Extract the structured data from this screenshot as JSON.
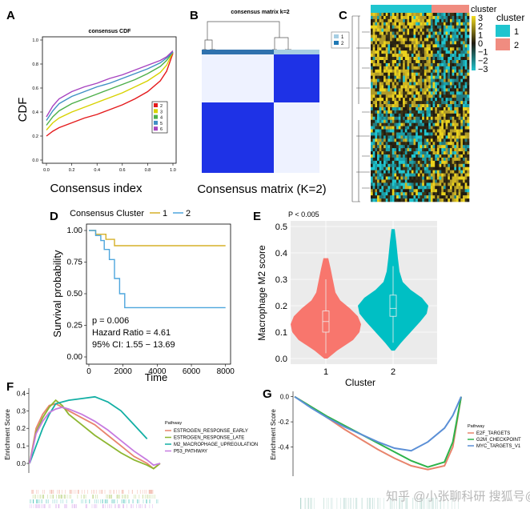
{
  "chart_data": [
    {
      "panel": "A",
      "type": "line",
      "title": "consensus CDF",
      "xlabel": "Consensus index",
      "ylabel": "CDF",
      "xlim": [
        0,
        1
      ],
      "ylim": [
        0,
        1
      ],
      "x_ticks": [
        "0.0",
        "0.2",
        "0.4",
        "0.6",
        "0.8",
        "1.0"
      ],
      "y_ticks": [
        "0.0",
        "0.2",
        "0.4",
        "0.6",
        "0.8",
        "1.0"
      ],
      "legend": [
        "2",
        "3",
        "4",
        "5",
        "6"
      ],
      "legend_position": "right",
      "colors": [
        "#E41A1C",
        "#D8D200",
        "#4DAF4A",
        "#3F8FC4",
        "#A743C0"
      ],
      "x": [
        0.0,
        0.05,
        0.1,
        0.2,
        0.3,
        0.4,
        0.5,
        0.6,
        0.7,
        0.8,
        0.9,
        0.95,
        1.0
      ],
      "series": [
        {
          "name": "2",
          "values": [
            0.2,
            0.24,
            0.27,
            0.31,
            0.35,
            0.38,
            0.42,
            0.46,
            0.51,
            0.57,
            0.66,
            0.74,
            0.89
          ]
        },
        {
          "name": "3",
          "values": [
            0.25,
            0.31,
            0.35,
            0.4,
            0.44,
            0.48,
            0.52,
            0.56,
            0.61,
            0.66,
            0.73,
            0.79,
            0.9
          ]
        },
        {
          "name": "4",
          "values": [
            0.29,
            0.36,
            0.41,
            0.47,
            0.51,
            0.55,
            0.59,
            0.63,
            0.67,
            0.72,
            0.78,
            0.83,
            0.9
          ]
        },
        {
          "name": "5",
          "values": [
            0.33,
            0.41,
            0.47,
            0.53,
            0.57,
            0.61,
            0.64,
            0.68,
            0.72,
            0.76,
            0.81,
            0.85,
            0.9
          ]
        },
        {
          "name": "6",
          "values": [
            0.36,
            0.45,
            0.51,
            0.57,
            0.61,
            0.64,
            0.68,
            0.71,
            0.75,
            0.79,
            0.83,
            0.86,
            0.91
          ]
        }
      ]
    },
    {
      "panel": "B",
      "type": "heatmap",
      "title": "consensus matrix k=2",
      "xlabel": "Consensus matrix (K=2)",
      "legend": [
        "1",
        "2"
      ],
      "colors": [
        "#A6CEE3",
        "#1F78B4"
      ]
    },
    {
      "panel": "C",
      "type": "heatmap",
      "legend_title": "cluster",
      "legend": [
        "1",
        "2"
      ],
      "cluster_colors": [
        "#20C5CF",
        "#F08C80"
      ],
      "colorbar_ticks": [
        "3",
        "2",
        "1",
        "0",
        "−1",
        "−2",
        "−3"
      ],
      "colorbar_colors": [
        "#F2DC1E",
        "#1F1A10",
        "#20C5CF"
      ]
    },
    {
      "panel": "D",
      "type": "line",
      "legend_title": "Consensus Cluster",
      "legend": [
        "1",
        "2"
      ],
      "colors": [
        "#D6B028",
        "#4DA6DD"
      ],
      "xlabel": "Time",
      "ylabel": "Survival probability",
      "xlim": [
        0,
        8200
      ],
      "ylim": [
        0,
        1
      ],
      "x_ticks": [
        "0",
        "2000",
        "4000",
        "6000",
        "8000"
      ],
      "y_ticks": [
        "0.00",
        "0.25",
        "0.50",
        "0.75",
        "1.00"
      ],
      "annotations": [
        "p = 0.006",
        "Hazard Ratio = 4.61",
        "95% CI: 1.55 − 13.69"
      ],
      "series": [
        {
          "name": "1",
          "x": [
            0,
            400,
            400,
            1000,
            1000,
            1500,
            1500,
            8000
          ],
          "y": [
            1.0,
            1.0,
            0.97,
            0.97,
            0.93,
            0.93,
            0.88,
            0.88
          ]
        },
        {
          "name": "2",
          "x": [
            0,
            400,
            400,
            700,
            700,
            900,
            900,
            1200,
            1200,
            1500,
            1500,
            1800,
            1800,
            2100,
            2100,
            8000
          ],
          "y": [
            1.0,
            1.0,
            0.96,
            0.96,
            0.92,
            0.92,
            0.85,
            0.85,
            0.77,
            0.77,
            0.62,
            0.62,
            0.5,
            0.5,
            0.39,
            0.39
          ]
        }
      ]
    },
    {
      "panel": "E",
      "type": "violin",
      "annotation": "P < 0.005",
      "xlabel": "Cluster",
      "ylabel": "Macrophage M2 score",
      "categories": [
        "1",
        "2"
      ],
      "colors": [
        "#F8766D",
        "#00BFC4"
      ],
      "ylim": [
        0,
        0.5
      ],
      "y_ticks": [
        "0.0",
        "0.1",
        "0.2",
        "0.3",
        "0.4",
        "0.5"
      ],
      "box": [
        {
          "name": "1",
          "whisker_low": 0.02,
          "q1": 0.1,
          "median": 0.14,
          "q3": 0.18,
          "whisker_high": 0.3,
          "min": 0.0,
          "max": 0.38
        },
        {
          "name": "2",
          "whisker_low": 0.06,
          "q1": 0.16,
          "median": 0.19,
          "q3": 0.24,
          "whisker_high": 0.35,
          "min": 0.03,
          "max": 0.49
        }
      ]
    },
    {
      "panel": "F",
      "type": "line",
      "ylabel": "Enrichment Score",
      "ylim": [
        -0.05,
        0.42
      ],
      "y_ticks": [
        "0.0",
        "0.1",
        "0.2",
        "0.3",
        "0.4"
      ],
      "legend_title": "Pathway",
      "legend": [
        "ESTROGEN_RESPONSE_EARLY",
        "ESTROGEN_RESPONSE_LATE",
        "M2_MACROPHAGE_UPREGULATION",
        "P53_PATHWAY"
      ],
      "colors": [
        "#E8846C",
        "#8DB630",
        "#13AFA4",
        "#C77BE0"
      ],
      "x": [
        0,
        0.05,
        0.1,
        0.15,
        0.2,
        0.25,
        0.3,
        0.4,
        0.5,
        0.6,
        0.7,
        0.8,
        0.9,
        0.95,
        1.0
      ],
      "series": [
        {
          "name": "ESTROGEN_RESPONSE_EARLY",
          "values": [
            0,
            0.2,
            0.28,
            0.33,
            0.34,
            0.32,
            0.3,
            0.26,
            0.22,
            0.16,
            0.1,
            0.04,
            0.0,
            -0.03,
            0
          ]
        },
        {
          "name": "ESTROGEN_RESPONSE_LATE",
          "values": [
            0,
            0.18,
            0.26,
            0.32,
            0.36,
            0.33,
            0.28,
            0.22,
            0.16,
            0.11,
            0.06,
            0.02,
            -0.01,
            -0.03,
            0
          ]
        },
        {
          "name": "M2_MACROPHAGE_UPREGULATION",
          "values": [
            0,
            0.1,
            0.2,
            0.28,
            0.34,
            0.35,
            0.36,
            0.37,
            0.38,
            0.35,
            0.3,
            0.22,
            0.14,
            null,
            null
          ]
        },
        {
          "name": "P53_PATHWAY",
          "values": [
            0,
            0.17,
            0.24,
            0.29,
            0.31,
            0.32,
            0.31,
            0.28,
            0.24,
            0.19,
            0.13,
            0.07,
            0.02,
            -0.01,
            0
          ]
        }
      ]
    },
    {
      "panel": "G",
      "type": "line",
      "ylabel": "Enrichment Score",
      "ylim": [
        -0.62,
        0.03
      ],
      "y_ticks": [
        "0.0",
        "-0.2",
        "-0.4"
      ],
      "legend_title": "Pathway",
      "legend": [
        "E2F_TARGETS",
        "G2M_CHECKPOINT",
        "MYC_TARGETS_V1"
      ],
      "colors": [
        "#E8846C",
        "#2DB34A",
        "#5B8FD6"
      ],
      "x": [
        0,
        0.1,
        0.2,
        0.3,
        0.4,
        0.5,
        0.6,
        0.7,
        0.8,
        0.9,
        0.95,
        1.0
      ],
      "series": [
        {
          "name": "E2F_TARGETS",
          "values": [
            0,
            -0.08,
            -0.17,
            -0.26,
            -0.34,
            -0.42,
            -0.49,
            -0.55,
            -0.58,
            -0.55,
            -0.4,
            0
          ]
        },
        {
          "name": "G2M_CHECKPOINT",
          "values": [
            0,
            -0.08,
            -0.16,
            -0.23,
            -0.3,
            -0.37,
            -0.44,
            -0.51,
            -0.56,
            -0.52,
            -0.36,
            0
          ]
        },
        {
          "name": "MYC_TARGETS_V1",
          "values": [
            0,
            -0.09,
            -0.17,
            -0.24,
            -0.3,
            -0.36,
            -0.41,
            -0.43,
            -0.36,
            -0.25,
            -0.15,
            0
          ]
        }
      ]
    }
  ],
  "panel_labels": [
    "A",
    "B",
    "C",
    "D",
    "E",
    "F",
    "G"
  ],
  "watermark": "知乎 @小张聊科研  搜狐号@小张聊科研"
}
